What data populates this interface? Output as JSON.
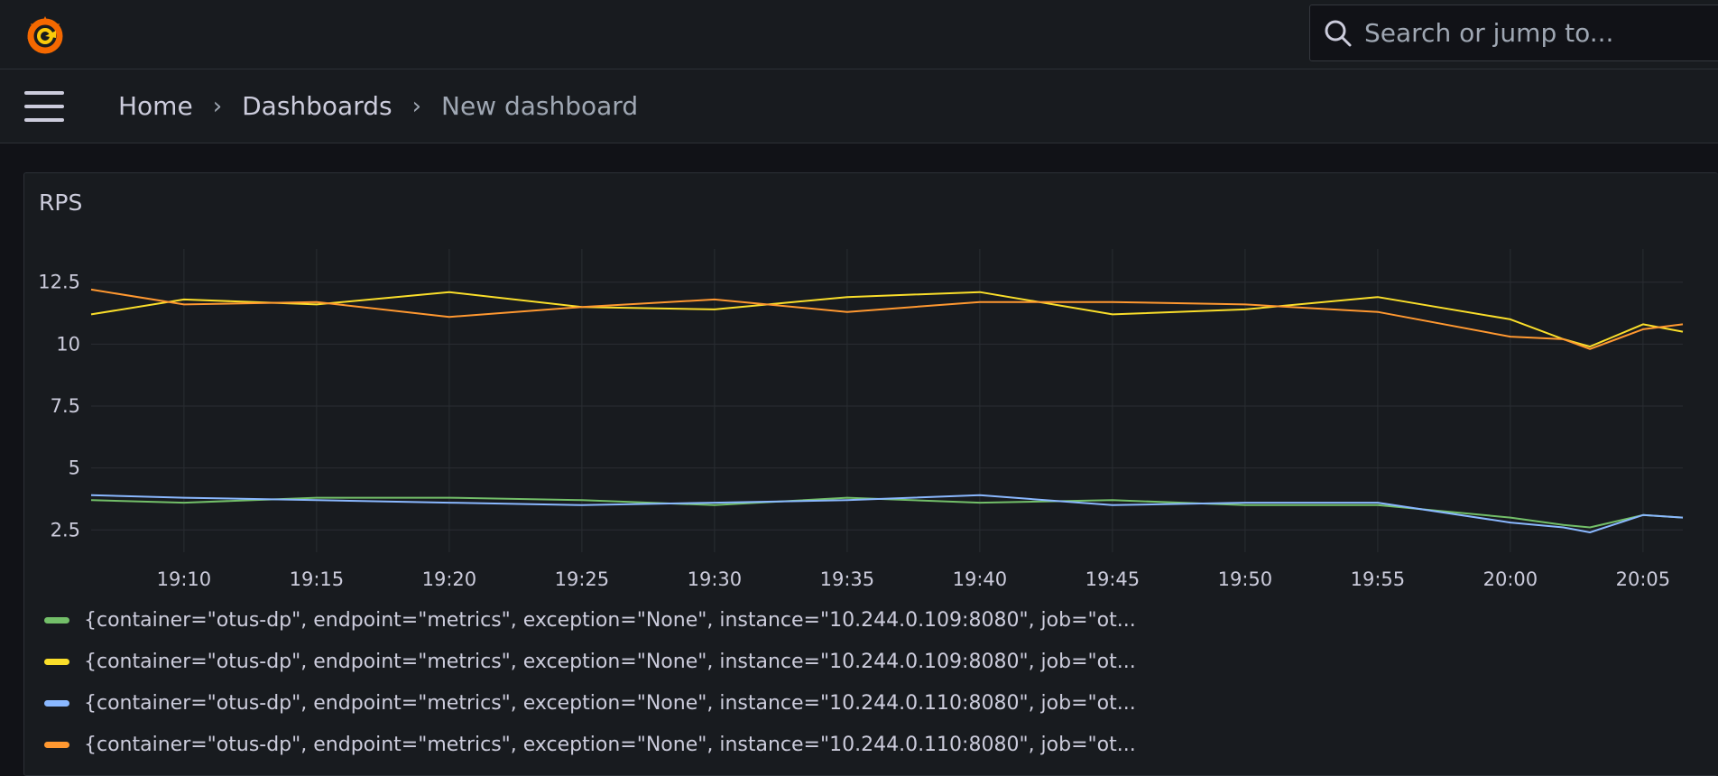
{
  "app": {
    "logo_icon": "grafana-logo-icon"
  },
  "search": {
    "placeholder": "Search or jump to..."
  },
  "breadcrumbs": [
    {
      "label": "Home"
    },
    {
      "label": "Dashboards"
    },
    {
      "label": "New dashboard"
    }
  ],
  "panel": {
    "title": "RPS",
    "chart_data": {
      "type": "line",
      "title": "RPS",
      "xlabel": "",
      "ylabel": "",
      "ylim": [
        1.6,
        13.4
      ],
      "yticks": [
        2.5,
        5,
        7.5,
        10,
        12.5
      ],
      "ytick_labels": [
        "2.5",
        "5",
        "7.5",
        "10",
        "12.5"
      ],
      "xlim": [
        "19:06:30",
        "20:06:30"
      ],
      "xticks": [
        "19:10",
        "19:15",
        "19:20",
        "19:25",
        "19:30",
        "19:35",
        "19:40",
        "19:45",
        "19:50",
        "19:55",
        "20:00",
        "20:05"
      ],
      "grid": true,
      "legend_position": "bottom",
      "x": [
        "19:06:30",
        "19:10",
        "19:15",
        "19:20",
        "19:25",
        "19:30",
        "19:35",
        "19:40",
        "19:45",
        "19:50",
        "19:55",
        "20:00",
        "20:02",
        "20:03",
        "20:05",
        "20:06:30"
      ],
      "series": [
        {
          "name": "{container=\"otus-dp\", endpoint=\"metrics\", exception=\"None\", instance=\"10.244.0.109:8080\", job=\"ot...",
          "color": "#73bf69",
          "values": [
            3.7,
            3.6,
            3.8,
            3.8,
            3.7,
            3.5,
            3.8,
            3.6,
            3.7,
            3.5,
            3.5,
            3.0,
            2.7,
            2.6,
            3.1,
            3.0
          ]
        },
        {
          "name": "{container=\"otus-dp\", endpoint=\"metrics\", exception=\"None\", instance=\"10.244.0.109:8080\", job=\"ot...",
          "color": "#fade2a",
          "values": [
            11.2,
            11.8,
            11.6,
            12.1,
            11.5,
            11.4,
            11.9,
            12.1,
            11.2,
            11.4,
            11.9,
            11.0,
            10.2,
            9.9,
            10.8,
            10.5
          ]
        },
        {
          "name": "{container=\"otus-dp\", endpoint=\"metrics\", exception=\"None\", instance=\"10.244.0.110:8080\", job=\"ot...",
          "color": "#8ab8ff",
          "values": [
            3.9,
            3.8,
            3.7,
            3.6,
            3.5,
            3.6,
            3.7,
            3.9,
            3.5,
            3.6,
            3.6,
            2.8,
            2.6,
            2.4,
            3.1,
            3.0
          ]
        },
        {
          "name": "{container=\"otus-dp\", endpoint=\"metrics\", exception=\"None\", instance=\"10.244.0.110:8080\", job=\"ot...",
          "color": "#ff9830",
          "values": [
            12.2,
            11.6,
            11.7,
            11.1,
            11.5,
            11.8,
            11.3,
            11.7,
            11.7,
            11.6,
            11.3,
            10.3,
            10.2,
            9.8,
            10.6,
            10.8
          ]
        }
      ]
    }
  }
}
